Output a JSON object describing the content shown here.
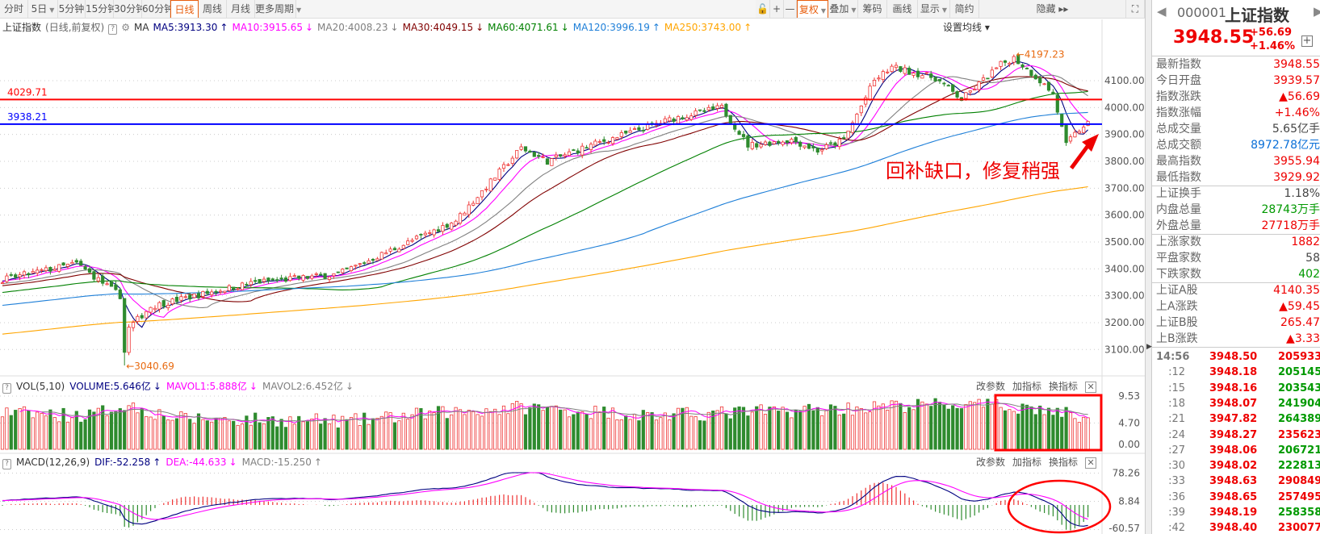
{
  "toolbar": {
    "periods": [
      {
        "label": "分时"
      },
      {
        "label": "5日",
        "dropdown": true
      },
      {
        "label": "5分钟"
      },
      {
        "label": "15分钟"
      },
      {
        "label": "30分钟"
      },
      {
        "label": "60分钟"
      },
      {
        "label": "日线",
        "active": true
      },
      {
        "label": "周线"
      },
      {
        "label": "月线"
      },
      {
        "label": "更多周期",
        "dropdown": true
      }
    ],
    "tools": [
      {
        "label": "🔓",
        "name": "lock"
      },
      {
        "label": "+",
        "name": "zoom-in"
      },
      {
        "label": "—",
        "name": "zoom-out"
      },
      {
        "label": "复权",
        "dropdown": true,
        "active": true,
        "name": "restore-rights"
      },
      {
        "label": "叠加",
        "dropdown": true,
        "name": "overlay"
      },
      {
        "label": "筹码",
        "name": "chips"
      },
      {
        "label": "画线",
        "name": "draw-line"
      },
      {
        "label": "显示",
        "dropdown": true,
        "name": "display"
      },
      {
        "label": "简约",
        "name": "simple"
      },
      {
        "label": "隐藏 ▸▸",
        "name": "hide"
      },
      {
        "label": "⛶",
        "name": "fullscreen"
      }
    ]
  },
  "ma_legend": {
    "index_name": "上证指数",
    "mode": "(日线,前复权)",
    "help": "?",
    "ma_label": "MA",
    "items": [
      {
        "text": "MA5:3913.30",
        "arrow": "↑",
        "color": "#000080"
      },
      {
        "text": "MA10:3915.65",
        "arrow": "↓",
        "color": "#ff00ff"
      },
      {
        "text": "MA20:4008.23",
        "arrow": "↓",
        "color": "#808080"
      },
      {
        "text": "MA30:4049.15",
        "arrow": "↓",
        "color": "#800000"
      },
      {
        "text": "MA60:4071.61",
        "arrow": "↓",
        "color": "#008000"
      },
      {
        "text": "MA120:3996.19",
        "arrow": "↑",
        "color": "#1e7fd8"
      },
      {
        "text": "MA250:3743.00",
        "arrow": "↑",
        "color": "#ffa500"
      }
    ],
    "settings": "设置均线 ▾"
  },
  "price_lines": [
    {
      "value": "4029.71",
      "color": "#ff0000"
    },
    {
      "value": "3938.21",
      "color": "#0000ff"
    }
  ],
  "annotations": {
    "high": "←4197.23",
    "low": "←3040.69",
    "note": "回补缺口，修复稍强"
  },
  "volume_panel": {
    "help": "?",
    "name": "VOL(5,10)",
    "items": [
      {
        "text": "VOLUME:5.646亿",
        "arrow": "↓",
        "color": "#000080"
      },
      {
        "text": "MAVOL1:5.888亿",
        "arrow": "↓",
        "color": "#ff00ff"
      },
      {
        "text": "MAVOL2:6.452亿",
        "arrow": "↓",
        "color": "#808080"
      }
    ]
  },
  "macd_panel": {
    "help": "?",
    "name": "MACD(12,26,9)",
    "items": [
      {
        "text": "DIF:-52.258",
        "arrow": "↑",
        "color": "#000080"
      },
      {
        "text": "DEA:-44.633",
        "arrow": "↓",
        "color": "#ff00ff"
      },
      {
        "text": "MACD:-15.250",
        "arrow": "↑",
        "color": "#808080"
      }
    ]
  },
  "panel_buttons": [
    "改参数",
    "加指标",
    "换指标"
  ],
  "chart_data": {
    "type": "candlestick",
    "days": 250,
    "price_axis": [
      "4100.00",
      "4000.00",
      "3900.00",
      "3800.00",
      "3700.00",
      "3600.00",
      "3500.00",
      "3400.00",
      "3300.00",
      "3200.00",
      "3100.00"
    ],
    "price_axis_values": [
      4100,
      4000,
      3900,
      3800,
      3700,
      3600,
      3500,
      3400,
      3300,
      3200,
      3100
    ],
    "close_path": [
      [
        0,
        3360
      ],
      [
        17,
        3420
      ],
      [
        27,
        3300
      ],
      [
        28,
        3090
      ],
      [
        29,
        3180
      ],
      [
        34,
        3260
      ],
      [
        44,
        3300
      ],
      [
        58,
        3350
      ],
      [
        77,
        3380
      ],
      [
        96,
        3520
      ],
      [
        104,
        3580
      ],
      [
        119,
        3850
      ],
      [
        125,
        3800
      ],
      [
        135,
        3860
      ],
      [
        154,
        3960
      ],
      [
        165,
        4000
      ],
      [
        171,
        3860
      ],
      [
        181,
        3880
      ],
      [
        187,
        3840
      ],
      [
        193,
        3880
      ],
      [
        200,
        4100
      ],
      [
        204,
        4150
      ],
      [
        214,
        4110
      ],
      [
        220,
        4030
      ],
      [
        229,
        4160
      ],
      [
        232,
        4185
      ],
      [
        238,
        4100
      ],
      [
        241,
        4050
      ],
      [
        244,
        3860
      ],
      [
        246,
        3900
      ],
      [
        249,
        3948.55
      ]
    ],
    "extremes": [
      {
        "day": 28,
        "low": 3040.69
      },
      {
        "day": 232,
        "high": 4197.23
      }
    ],
    "volume_axis": [
      "9.53",
      "4.70",
      "0.00"
    ],
    "volume_axis_values": [
      9.53,
      4.7,
      0
    ],
    "volume_profile": [
      [
        0,
        6.5
      ],
      [
        20,
        6
      ],
      [
        28,
        8
      ],
      [
        40,
        5.5
      ],
      [
        80,
        5
      ],
      [
        100,
        6.5
      ],
      [
        120,
        7.5
      ],
      [
        150,
        6
      ],
      [
        200,
        7.5
      ],
      [
        215,
        8
      ],
      [
        235,
        7.5
      ],
      [
        249,
        5.646
      ]
    ],
    "macd_axis": [
      "78.26",
      "8.84",
      "-60.57"
    ],
    "macd_axis_values": [
      78.26,
      8.84,
      -60.57
    ],
    "ma_periods": [
      5,
      10,
      20,
      30,
      60,
      120,
      250
    ]
  },
  "quote": {
    "code": "000001",
    "name": "上证指数",
    "price": "3948.55",
    "change": "+56.69",
    "pct": "+1.46%",
    "plus": "+",
    "groups": [
      [
        [
          "最新指数",
          "3948.55",
          "red"
        ],
        [
          "今日开盘",
          "3939.57",
          "red"
        ],
        [
          "指数涨跌",
          "▲56.69",
          "red"
        ],
        [
          "指数涨幅",
          "+1.46%",
          "red"
        ],
        [
          "总成交量",
          "5.65亿手",
          "dark"
        ],
        [
          "总成交额",
          "8972.78亿元",
          "blue"
        ],
        [
          "最高指数",
          "3955.94",
          "red"
        ],
        [
          "最低指数",
          "3929.92",
          "red"
        ]
      ],
      [
        [
          "上证换手",
          "1.18%",
          "dark"
        ],
        [
          "内盘总量",
          "28743万手",
          "green"
        ],
        [
          "外盘总量",
          "27718万手",
          "red"
        ]
      ],
      [
        [
          "上涨家数",
          "1882",
          "red"
        ],
        [
          "平盘家数",
          "58",
          "dark"
        ],
        [
          "下跌家数",
          "402",
          "green"
        ]
      ],
      [
        [
          "上证A股",
          "4140.35",
          "red"
        ],
        [
          "上A涨跌",
          "▲59.45",
          "red"
        ],
        [
          "上证B股",
          "265.47",
          "red"
        ],
        [
          "上B涨跌",
          "▲3.33",
          "red"
        ]
      ]
    ],
    "ticks": [
      [
        "14:56",
        "3948.50",
        "205933",
        "red"
      ],
      [
        ":12",
        "3948.18",
        "205145",
        "green"
      ],
      [
        ":15",
        "3948.16",
        "203543",
        "green"
      ],
      [
        ":18",
        "3948.07",
        "241904",
        "green"
      ],
      [
        ":21",
        "3947.82",
        "264389",
        "green"
      ],
      [
        ":24",
        "3948.27",
        "235623",
        "red"
      ],
      [
        ":27",
        "3948.06",
        "206721",
        "green"
      ],
      [
        ":30",
        "3948.02",
        "222813",
        "green"
      ],
      [
        ":33",
        "3948.63",
        "290849",
        "red"
      ],
      [
        ":36",
        "3948.65",
        "257495",
        "red"
      ],
      [
        ":39",
        "3948.19",
        "258358",
        "green"
      ],
      [
        ":42",
        "3948.40",
        "230077",
        "red"
      ]
    ]
  }
}
